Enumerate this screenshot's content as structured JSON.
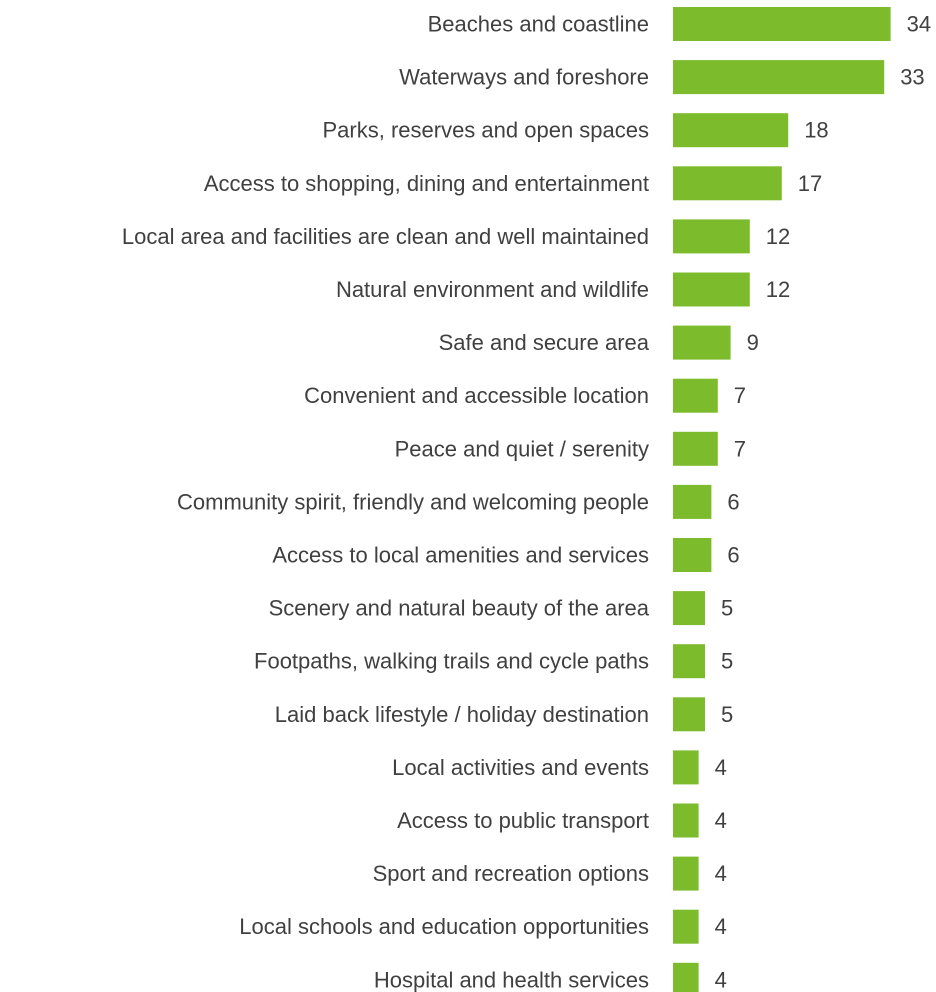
{
  "chart_data": {
    "type": "bar",
    "orientation": "horizontal",
    "title": "",
    "xlabel": "",
    "ylabel": "",
    "grid": false,
    "legend": "none",
    "xlim": [
      0,
      34
    ],
    "bar_color": "#7cbb2b",
    "text_color": "#404040",
    "categories": [
      "Beaches and coastline",
      "Waterways and foreshore",
      "Parks, reserves and open spaces",
      "Access to shopping, dining and entertainment",
      "Local area and facilities are clean and well maintained",
      "Natural environment and wildlife",
      "Safe and secure area",
      "Convenient and accessible location",
      "Peace and quiet / serenity",
      "Community spirit, friendly and welcoming people",
      "Access to local amenities and services",
      "Scenery and natural beauty of the area",
      "Footpaths, walking trails and cycle paths",
      "Laid back lifestyle / holiday destination",
      "Local activities and events",
      "Access to public transport",
      "Sport and recreation options",
      "Local schools and education opportunities",
      "Hospital and health services"
    ],
    "values": [
      34,
      33,
      18,
      17,
      12,
      12,
      9,
      7,
      7,
      6,
      6,
      5,
      5,
      5,
      4,
      4,
      4,
      4,
      4
    ]
  }
}
